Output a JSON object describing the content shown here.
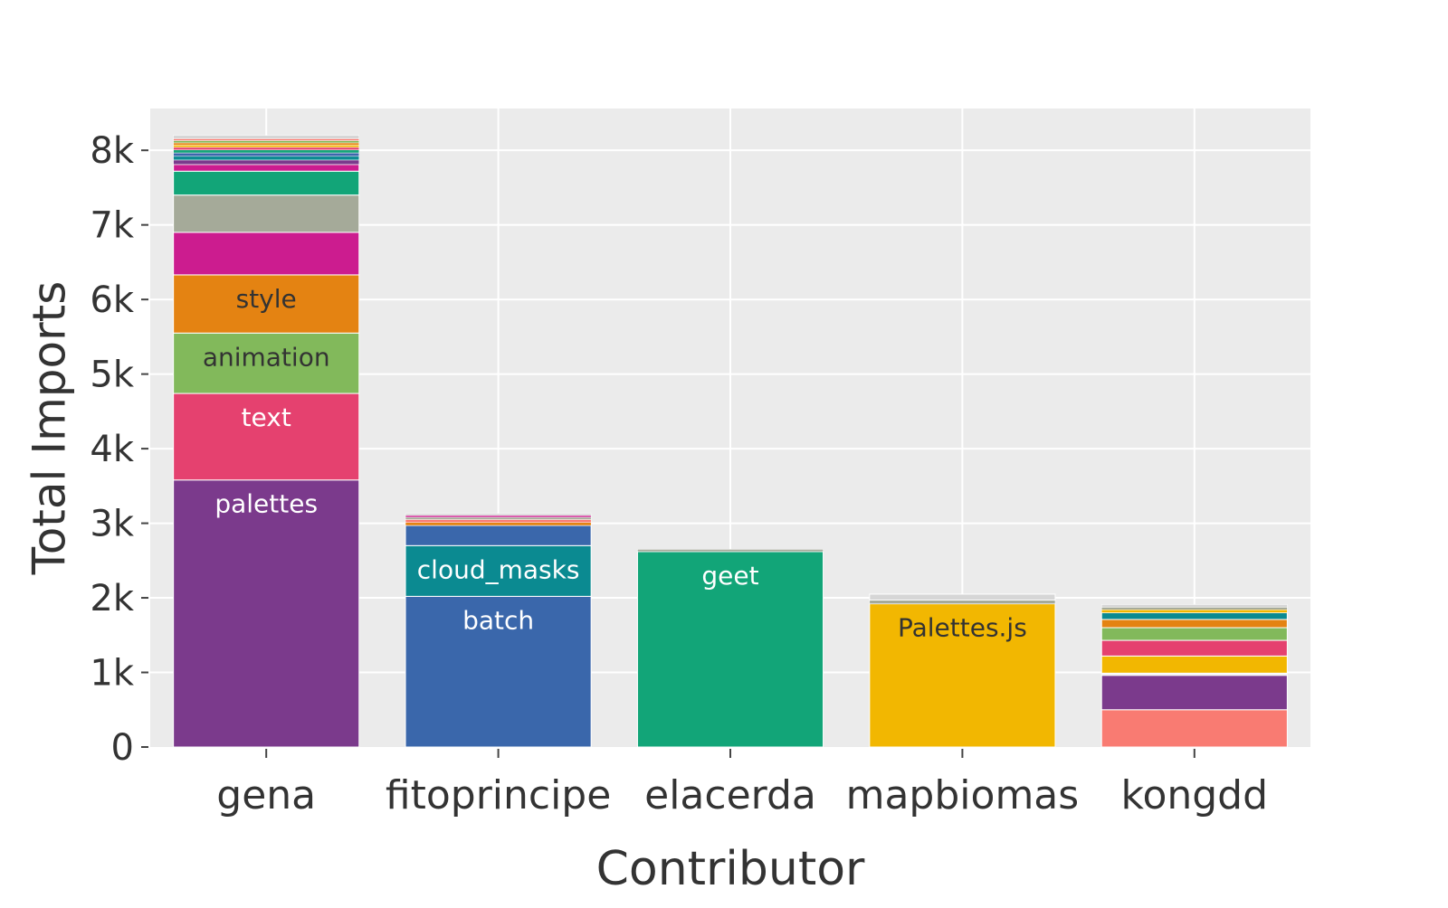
{
  "chart_data": {
    "type": "bar",
    "stacked": true,
    "title": "",
    "xlabel": "Contributor",
    "ylabel": "Total Imports",
    "ylim": [
      0,
      8560
    ],
    "yticks": [
      0,
      1000,
      2000,
      3000,
      4000,
      5000,
      6000,
      7000,
      8000
    ],
    "ytick_labels": [
      "0",
      "1k",
      "2k",
      "3k",
      "4k",
      "5k",
      "6k",
      "7k",
      "8k"
    ],
    "grid": true,
    "legend": "none",
    "plot_background": "#ebebeb",
    "categories": [
      "gena",
      "fitoprincipe",
      "elacerda",
      "mapbiomas",
      "kongdd"
    ],
    "bars": [
      {
        "category": "gena",
        "segments": [
          {
            "label": "palettes",
            "value": 3580,
            "color": "#7b3a8c",
            "text_color": "#ffffff"
          },
          {
            "label": "text",
            "value": 1160,
            "color": "#e5416f",
            "text_color": "#ffffff"
          },
          {
            "label": "animation",
            "value": 810,
            "color": "#82b95b",
            "text_color": "#333333"
          },
          {
            "label": "style",
            "value": 780,
            "color": "#e48312",
            "text_color": "#333333"
          },
          {
            "label": "",
            "value": 570,
            "color": "#cc1c8f",
            "text_color": "#ffffff"
          },
          {
            "label": "",
            "value": 500,
            "color": "#a5aa99",
            "text_color": "#333333"
          },
          {
            "label": "",
            "value": 320,
            "color": "#12a578",
            "text_color": "#ffffff"
          },
          {
            "label": "",
            "value": 90,
            "color": "#cc1c8f",
            "text_color": "#ffffff"
          },
          {
            "label": "",
            "value": 60,
            "color": "#7b3a8c",
            "text_color": "#ffffff"
          },
          {
            "label": "",
            "value": 50,
            "color": "#0b8a91",
            "text_color": "#ffffff"
          },
          {
            "label": "",
            "value": 45,
            "color": "#3a67ab",
            "text_color": "#ffffff"
          },
          {
            "label": "",
            "value": 40,
            "color": "#12a578",
            "text_color": "#ffffff"
          },
          {
            "label": "",
            "value": 35,
            "color": "#e5416f",
            "text_color": "#ffffff"
          },
          {
            "label": "",
            "value": 30,
            "color": "#f2b701",
            "text_color": "#333333"
          },
          {
            "label": "",
            "value": 30,
            "color": "#e48312",
            "text_color": "#333333"
          },
          {
            "label": "",
            "value": 30,
            "color": "#82b95b",
            "text_color": "#333333"
          },
          {
            "label": "",
            "value": 25,
            "color": "#f97b72",
            "text_color": "#333333"
          },
          {
            "label": "",
            "value": 45,
            "color": "#d6d6d6",
            "text_color": "#333333"
          }
        ]
      },
      {
        "category": "fitoprincipe",
        "segments": [
          {
            "label": "batch",
            "value": 2020,
            "color": "#3a67ab",
            "text_color": "#ffffff"
          },
          {
            "label": "cloud_masks",
            "value": 680,
            "color": "#0b8a91",
            "text_color": "#ffffff"
          },
          {
            "label": "",
            "value": 270,
            "color": "#3a67ab",
            "text_color": "#ffffff"
          },
          {
            "label": "",
            "value": 40,
            "color": "#e48312",
            "text_color": "#333333"
          },
          {
            "label": "",
            "value": 40,
            "color": "#f97b72",
            "text_color": "#333333"
          },
          {
            "label": "",
            "value": 30,
            "color": "#a5aa99",
            "text_color": "#333333"
          },
          {
            "label": "",
            "value": 25,
            "color": "#cc1c8f",
            "text_color": "#ffffff"
          },
          {
            "label": "",
            "value": 25,
            "color": "#d6d6d6",
            "text_color": "#333333"
          }
        ]
      },
      {
        "category": "elacerda",
        "segments": [
          {
            "label": "geet",
            "value": 2620,
            "color": "#12a578",
            "text_color": "#ffffff"
          },
          {
            "label": "",
            "value": 30,
            "color": "#a5aa99",
            "text_color": "#333333"
          }
        ]
      },
      {
        "category": "mapbiomas",
        "segments": [
          {
            "label": "Palettes.js",
            "value": 1920,
            "color": "#f2b701",
            "text_color": "#333333"
          },
          {
            "label": "",
            "value": 50,
            "color": "#a5aa99",
            "text_color": "#333333"
          },
          {
            "label": "",
            "value": 80,
            "color": "#d6d6d6",
            "text_color": "#333333"
          }
        ]
      },
      {
        "category": "kongdd",
        "segments": [
          {
            "label": "",
            "value": 500,
            "color": "#f97b72",
            "text_color": "#333333"
          },
          {
            "label": "",
            "value": 460,
            "color": "#7b3a8c",
            "text_color": "#ffffff"
          },
          {
            "label": "",
            "value": 30,
            "color": "#f2f2f2",
            "text_color": "#333333"
          },
          {
            "label": "",
            "value": 230,
            "color": "#f2b701",
            "text_color": "#333333"
          },
          {
            "label": "",
            "value": 210,
            "color": "#e5416f",
            "text_color": "#ffffff"
          },
          {
            "label": "",
            "value": 170,
            "color": "#82b95b",
            "text_color": "#333333"
          },
          {
            "label": "",
            "value": 110,
            "color": "#e48312",
            "text_color": "#333333"
          },
          {
            "label": "",
            "value": 90,
            "color": "#0b8a91",
            "text_color": "#ffffff"
          },
          {
            "label": "",
            "value": 40,
            "color": "#f2b701",
            "text_color": "#333333"
          },
          {
            "label": "",
            "value": 35,
            "color": "#a5aa99",
            "text_color": "#333333"
          },
          {
            "label": "",
            "value": 35,
            "color": "#d6d6d6",
            "text_color": "#333333"
          }
        ]
      }
    ]
  }
}
